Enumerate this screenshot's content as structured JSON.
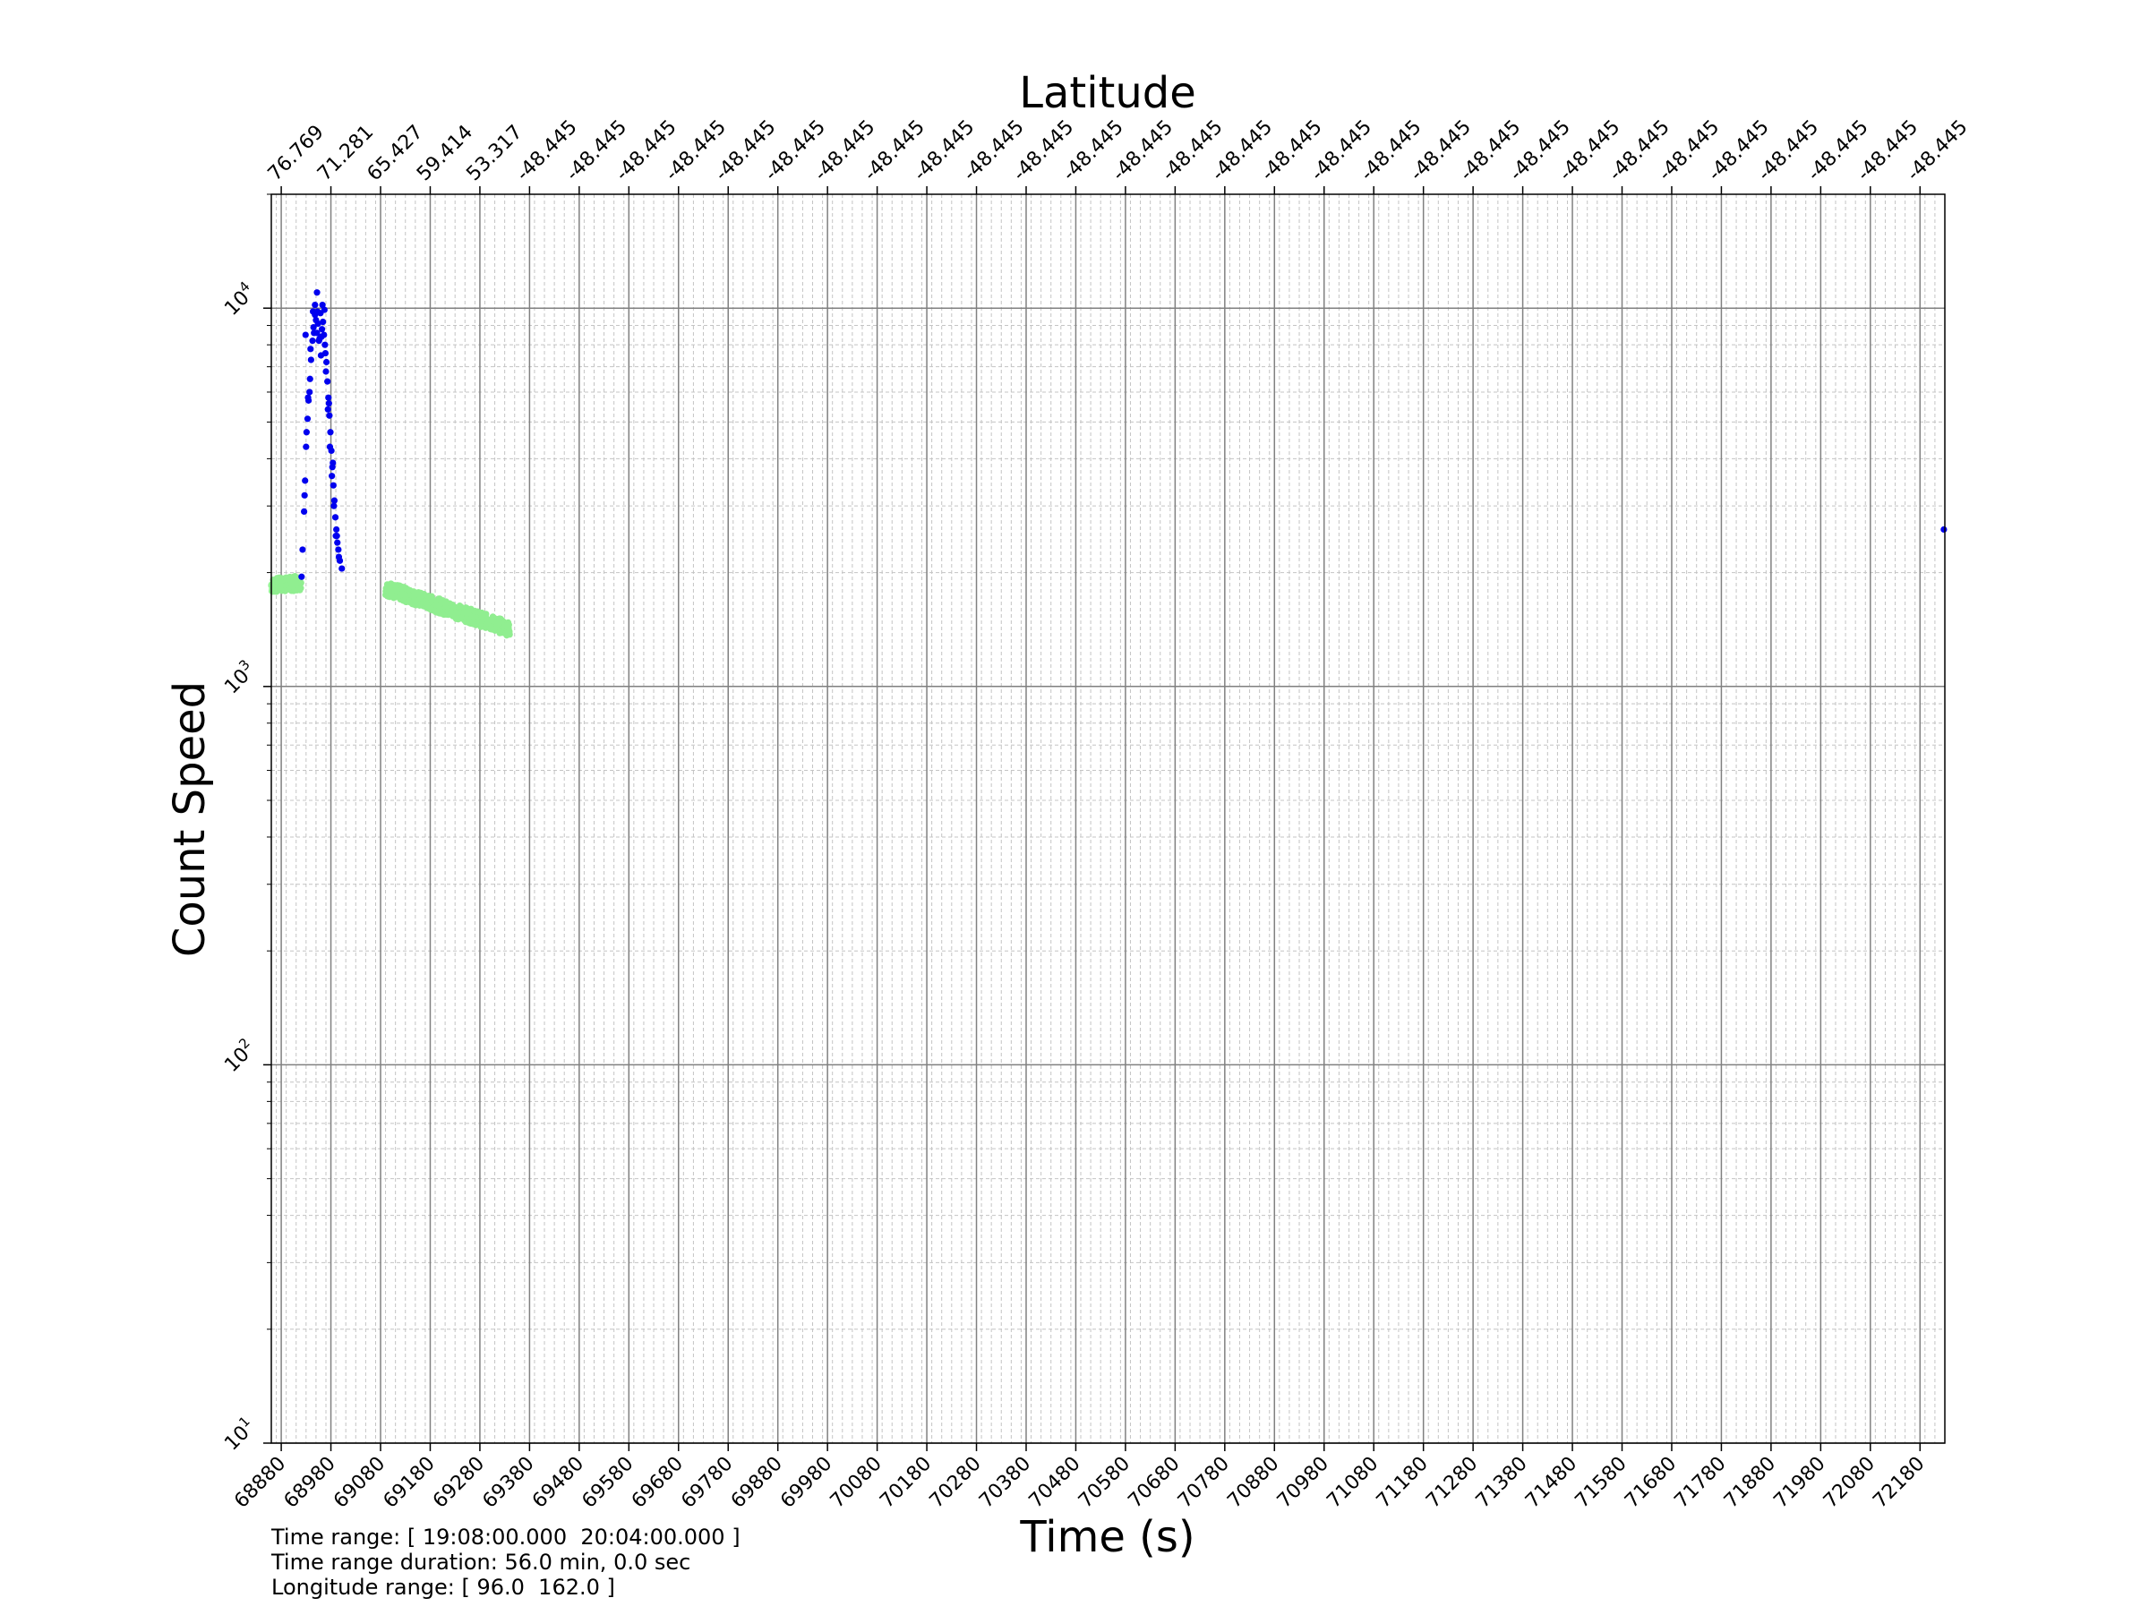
{
  "chart_data": {
    "type": "scatter",
    "title": "",
    "xlabel": "Time (s)",
    "ylabel": "Count Speed",
    "top_axis_label": "Latitude",
    "yscale": "log",
    "xlim": [
      68860,
      72230
    ],
    "ylim": [
      10,
      20000
    ],
    "grid": true,
    "x_ticks": [
      68880,
      68980,
      69080,
      69180,
      69280,
      69380,
      69480,
      69580,
      69680,
      69780,
      69880,
      69980,
      70080,
      70180,
      70280,
      70380,
      70480,
      70580,
      70680,
      70780,
      70880,
      70980,
      71080,
      71180,
      71280,
      71380,
      71480,
      71580,
      71680,
      71780,
      71880,
      71980,
      72080,
      72180
    ],
    "x_tick_labels": [
      "68880",
      "68980",
      "69080",
      "69180",
      "69280",
      "69380",
      "69480",
      "69580",
      "69680",
      "69780",
      "69880",
      "69980",
      "70080",
      "70180",
      "70280",
      "70380",
      "70480",
      "70580",
      "70680",
      "70780",
      "70880",
      "70980",
      "71080",
      "71180",
      "71280",
      "71380",
      "71480",
      "71580",
      "71680",
      "71780",
      "71880",
      "71980",
      "72080",
      "72180"
    ],
    "top_tick_labels": [
      "76.769",
      "71.281",
      "65.427",
      "59.414",
      "53.317",
      "-48.445",
      "-48.445",
      "-48.445",
      "-48.445",
      "-48.445",
      "-48.445",
      "-48.445",
      "-48.445",
      "-48.445",
      "-48.445",
      "-48.445",
      "-48.445",
      "-48.445",
      "-48.445",
      "-48.445",
      "-48.445",
      "-48.445",
      "-48.445",
      "-48.445",
      "-48.445",
      "-48.445",
      "-48.445",
      "-48.445",
      "-48.445",
      "-48.445",
      "-48.445",
      "-48.445",
      "-48.445",
      "-48.445"
    ],
    "y_ticks": [
      10,
      100,
      1000,
      10000
    ],
    "y_tick_labels": [
      {
        "base": "10",
        "exp": "1"
      },
      {
        "base": "10",
        "exp": "2"
      },
      {
        "base": "10",
        "exp": "3"
      },
      {
        "base": "10",
        "exp": "4"
      }
    ],
    "series": [
      {
        "color": "#90ee90",
        "segments": [
          {
            "x": [
              68860,
              68920
            ],
            "y": [
              1850,
              1880
            ]
          },
          {
            "x": [
              69090,
              69340
            ],
            "y": [
              1820,
              1420
            ]
          }
        ]
      },
      {
        "color": "#0000ee",
        "points": [
          [
            68921,
            1950
          ],
          [
            68923,
            2300
          ],
          [
            68926,
            2900
          ],
          [
            68928,
            3500
          ],
          [
            68930,
            4300
          ],
          [
            68933,
            5100
          ],
          [
            68935,
            5700
          ],
          [
            68938,
            6500
          ],
          [
            68940,
            7300
          ],
          [
            68943,
            8200
          ],
          [
            68945,
            8900
          ],
          [
            68948,
            9600
          ],
          [
            68950,
            9300
          ],
          [
            68952,
            8600
          ],
          [
            68954,
            9100
          ],
          [
            68957,
            8300
          ],
          [
            68959,
            9700
          ],
          [
            68962,
            8800
          ],
          [
            68964,
            9200
          ],
          [
            68966,
            8500
          ],
          [
            68968,
            8000
          ],
          [
            68971,
            7200
          ],
          [
            68973,
            6400
          ],
          [
            68975,
            5800
          ],
          [
            68977,
            5200
          ],
          [
            68979,
            4700
          ],
          [
            68981,
            4200
          ],
          [
            68983,
            3800
          ],
          [
            68985,
            3400
          ],
          [
            68987,
            3100
          ],
          [
            68989,
            2800
          ],
          [
            68991,
            2600
          ],
          [
            68993,
            2400
          ],
          [
            68995,
            2300
          ],
          [
            68998,
            2150
          ],
          [
            69002,
            2050
          ],
          [
            68929,
            8500
          ],
          [
            68934,
            5800
          ],
          [
            68937,
            6000
          ],
          [
            68944,
            9800
          ],
          [
            68948,
            10200
          ],
          [
            68952,
            11000
          ],
          [
            68956,
            8200
          ],
          [
            68960,
            7500
          ],
          [
            68963,
            10200
          ],
          [
            68967,
            9900
          ],
          [
            68970,
            6800
          ],
          [
            68974,
            5400
          ],
          [
            68978,
            4300
          ],
          [
            68982,
            3600
          ],
          [
            68986,
            3000
          ],
          [
            68990,
            2500
          ],
          [
            68996,
            2200
          ],
          [
            68927,
            3200
          ],
          [
            68931,
            4700
          ],
          [
            68939,
            7800
          ],
          [
            68946,
            8600
          ],
          [
            68953,
            9800
          ],
          [
            68961,
            8400
          ],
          [
            68969,
            7600
          ],
          [
            68976,
            5600
          ],
          [
            68984,
            3900
          ],
          [
            68992,
            2500
          ],
          [
            72228,
            2600
          ]
        ]
      }
    ]
  },
  "info": {
    "time_range": "Time range: [ 19:08:00.000  20:04:00.000 ]",
    "duration": "Time range duration: 56.0 min, 0.0 sec",
    "longitude_range": "Longitude range: [ 96.0  162.0 ]"
  }
}
